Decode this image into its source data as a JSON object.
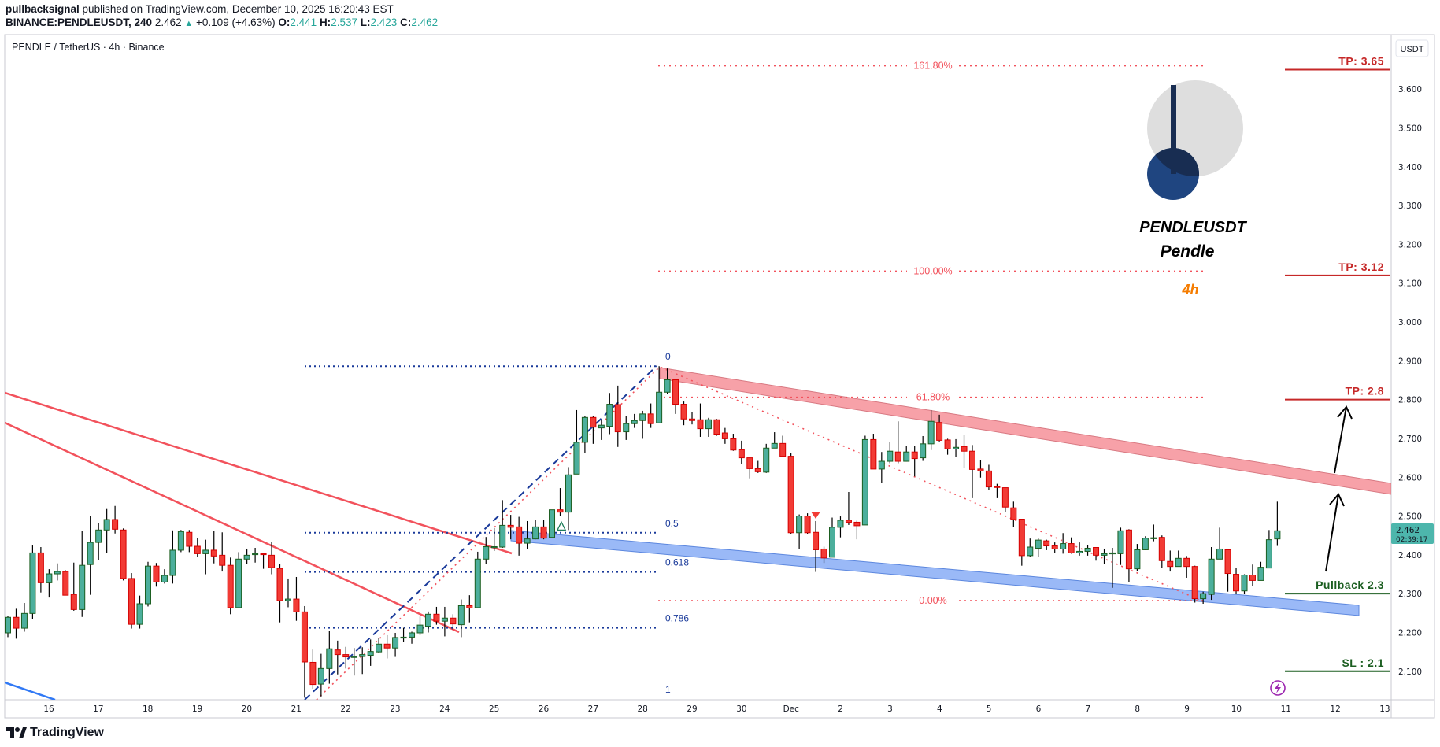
{
  "header": {
    "author": "pullbacksignal",
    "published": "published on TradingView.com, December 10, 2025 16:20:43 EST",
    "symbol": "BINANCE:PENDLEUSDT, 240",
    "last": "2.462",
    "change": "+0.109 (+4.63%)",
    "o_label": "O:",
    "o": "2.441",
    "h_label": "H:",
    "h": "2.537",
    "l_label": "L:",
    "l": "2.423",
    "c_label": "C:",
    "c": "2.462"
  },
  "chart_title": "PENDLE / TetherUS · 4h · Binance",
  "currency_button": "USDT",
  "price_axis": [
    "3.600",
    "3.500",
    "3.400",
    "3.300",
    "3.200",
    "3.100",
    "3.000",
    "2.900",
    "2.800",
    "2.700",
    "2.600",
    "2.500",
    "2.400",
    "2.300",
    "2.200",
    "2.100"
  ],
  "time_axis": [
    "16",
    "17",
    "18",
    "19",
    "20",
    "21",
    "22",
    "23",
    "24",
    "25",
    "26",
    "27",
    "28",
    "29",
    "30",
    "Dec",
    "2",
    "3",
    "4",
    "5",
    "6",
    "7",
    "8",
    "9",
    "10",
    "11",
    "12",
    "13"
  ],
  "price_tag": {
    "price": "2.462",
    "countdown": "02:39:17"
  },
  "fib_retracement": [
    {
      "label": "0",
      "price": 2.886
    },
    {
      "label": "0.5",
      "price": 2.457
    },
    {
      "label": "0.618",
      "price": 2.356
    },
    {
      "label": "0.786",
      "price": 2.212
    },
    {
      "label": "1",
      "price": 2.027
    }
  ],
  "fib_extension": [
    {
      "label": "161.80%",
      "price": 3.66
    },
    {
      "label": "100.00%",
      "price": 3.131
    },
    {
      "label": "61.80%",
      "price": 2.806
    },
    {
      "label": "0.00%",
      "price": 2.282
    }
  ],
  "targets": [
    {
      "label": "TP: 3.65",
      "price": 3.65,
      "color": "#c62828"
    },
    {
      "label": "TP: 3.12",
      "price": 3.12,
      "color": "#c62828"
    },
    {
      "label": "TP: 2.8",
      "price": 2.8,
      "color": "#c62828"
    },
    {
      "label": "Pullback 2.3",
      "price": 2.3,
      "color": "#1b5e20"
    },
    {
      "label": "SL : 2.1",
      "price": 2.1,
      "color": "#1b5e20"
    }
  ],
  "annotation": {
    "ticker": "PENDLEUSDT",
    "name": "Pendle",
    "timeframe": "4h"
  },
  "footer": {
    "brand": "TradingView"
  },
  "colors": {
    "up": "#4caf9c",
    "up_border": "#1b5e20",
    "down": "#f23b35",
    "down_border": "#d50000",
    "accent": "#f57c00"
  },
  "chart_data": {
    "type": "candlestick",
    "interval": "4h",
    "ylim": [
      2.0,
      3.75
    ],
    "candles": [
      [
        2.199,
        2.243,
        2.188,
        2.239
      ],
      [
        2.239,
        2.261,
        2.184,
        2.211
      ],
      [
        2.211,
        2.276,
        2.202,
        2.249
      ],
      [
        2.249,
        2.424,
        2.234,
        2.405
      ],
      [
        2.405,
        2.42,
        2.303,
        2.328
      ],
      [
        2.328,
        2.363,
        2.29,
        2.351
      ],
      [
        2.351,
        2.378,
        2.334,
        2.357
      ],
      [
        2.357,
        2.36,
        2.296,
        2.296
      ],
      [
        2.298,
        2.38,
        2.256,
        2.259
      ],
      [
        2.259,
        2.461,
        2.24,
        2.373
      ],
      [
        2.375,
        2.501,
        2.297,
        2.432
      ],
      [
        2.432,
        2.481,
        2.386,
        2.464
      ],
      [
        2.464,
        2.518,
        2.405,
        2.491
      ],
      [
        2.491,
        2.526,
        2.455,
        2.466
      ],
      [
        2.464,
        2.468,
        2.334,
        2.339
      ],
      [
        2.339,
        2.353,
        2.21,
        2.221
      ],
      [
        2.221,
        2.295,
        2.21,
        2.274
      ],
      [
        2.274,
        2.382,
        2.267,
        2.371
      ],
      [
        2.371,
        2.379,
        2.318,
        2.33
      ],
      [
        2.33,
        2.363,
        2.326,
        2.347
      ],
      [
        2.347,
        2.463,
        2.326,
        2.412
      ],
      [
        2.412,
        2.464,
        2.407,
        2.46
      ],
      [
        2.458,
        2.464,
        2.407,
        2.422
      ],
      [
        2.422,
        2.443,
        2.395,
        2.403
      ],
      [
        2.403,
        2.439,
        2.35,
        2.412
      ],
      [
        2.412,
        2.461,
        2.378,
        2.397
      ],
      [
        2.399,
        2.458,
        2.357,
        2.373
      ],
      [
        2.373,
        2.393,
        2.247,
        2.264
      ],
      [
        2.264,
        2.407,
        2.262,
        2.389
      ],
      [
        2.389,
        2.416,
        2.376,
        2.399
      ],
      [
        2.401,
        2.418,
        2.38,
        2.403
      ],
      [
        2.403,
        2.405,
        2.364,
        2.401
      ],
      [
        2.399,
        2.434,
        2.35,
        2.367
      ],
      [
        2.365,
        2.376,
        2.226,
        2.282
      ],
      [
        2.282,
        2.339,
        2.265,
        2.286
      ],
      [
        2.286,
        2.343,
        2.23,
        2.253
      ],
      [
        2.253,
        2.268,
        2.032,
        2.124
      ],
      [
        2.123,
        2.156,
        2.055,
        2.066
      ],
      [
        2.067,
        2.145,
        2.035,
        2.107
      ],
      [
        2.107,
        2.205,
        2.068,
        2.158
      ],
      [
        2.155,
        2.179,
        2.092,
        2.143
      ],
      [
        2.143,
        2.163,
        2.107,
        2.137
      ],
      [
        2.137,
        2.16,
        2.089,
        2.138
      ],
      [
        2.138,
        2.162,
        2.093,
        2.143
      ],
      [
        2.141,
        2.182,
        2.114,
        2.151
      ],
      [
        2.15,
        2.185,
        2.147,
        2.17
      ],
      [
        2.17,
        2.193,
        2.133,
        2.16
      ],
      [
        2.16,
        2.199,
        2.137,
        2.187
      ],
      [
        2.187,
        2.212,
        2.176,
        2.188
      ],
      [
        2.188,
        2.202,
        2.171,
        2.199
      ],
      [
        2.199,
        2.241,
        2.193,
        2.219
      ],
      [
        2.216,
        2.254,
        2.2,
        2.247
      ],
      [
        2.247,
        2.266,
        2.22,
        2.229
      ],
      [
        2.229,
        2.266,
        2.19,
        2.237
      ],
      [
        2.237,
        2.247,
        2.207,
        2.222
      ],
      [
        2.22,
        2.285,
        2.188,
        2.269
      ],
      [
        2.269,
        2.296,
        2.226,
        2.263
      ],
      [
        2.264,
        2.408,
        2.264,
        2.389
      ],
      [
        2.389,
        2.446,
        2.376,
        2.421
      ],
      [
        2.42,
        2.469,
        2.41,
        2.421
      ],
      [
        2.42,
        2.541,
        2.418,
        2.476
      ],
      [
        2.476,
        2.503,
        2.44,
        2.471
      ],
      [
        2.472,
        2.498,
        2.398,
        2.43
      ],
      [
        2.43,
        2.487,
        2.416,
        2.441
      ],
      [
        2.441,
        2.491,
        2.44,
        2.472
      ],
      [
        2.472,
        2.491,
        2.44,
        2.443
      ],
      [
        2.445,
        2.516,
        2.445,
        2.516
      ],
      [
        2.516,
        2.572,
        2.501,
        2.51
      ],
      [
        2.51,
        2.626,
        2.464,
        2.606
      ],
      [
        2.608,
        2.773,
        2.608,
        2.69
      ],
      [
        2.69,
        2.758,
        2.663,
        2.754
      ],
      [
        2.754,
        2.758,
        2.686,
        2.729
      ],
      [
        2.727,
        2.748,
        2.696,
        2.734
      ],
      [
        2.731,
        2.817,
        2.711,
        2.788
      ],
      [
        2.787,
        2.836,
        2.678,
        2.717
      ],
      [
        2.717,
        2.758,
        2.696,
        2.738
      ],
      [
        2.738,
        2.763,
        2.727,
        2.746
      ],
      [
        2.746,
        2.771,
        2.699,
        2.763
      ],
      [
        2.763,
        2.79,
        2.727,
        2.738
      ],
      [
        2.74,
        2.886,
        2.74,
        2.819
      ],
      [
        2.819,
        2.88,
        2.815,
        2.851
      ],
      [
        2.851,
        2.851,
        2.763,
        2.788
      ],
      [
        2.788,
        2.795,
        2.734,
        2.75
      ],
      [
        2.75,
        2.767,
        2.736,
        2.746
      ],
      [
        2.748,
        2.79,
        2.704,
        2.725
      ],
      [
        2.725,
        2.753,
        2.704,
        2.748
      ],
      [
        2.748,
        2.75,
        2.707,
        2.711
      ],
      [
        2.714,
        2.727,
        2.686,
        2.699
      ],
      [
        2.699,
        2.712,
        2.668,
        2.67
      ],
      [
        2.671,
        2.694,
        2.635,
        2.65
      ],
      [
        2.65,
        2.65,
        2.597,
        2.622
      ],
      [
        2.622,
        2.642,
        2.611,
        2.614
      ],
      [
        2.613,
        2.686,
        2.611,
        2.675
      ],
      [
        2.675,
        2.716,
        2.675,
        2.687
      ],
      [
        2.687,
        2.707,
        2.654,
        2.654
      ],
      [
        2.654,
        2.663,
        2.453,
        2.457
      ],
      [
        2.457,
        2.504,
        2.416,
        2.5
      ],
      [
        2.5,
        2.507,
        2.453,
        2.457
      ],
      [
        2.458,
        2.487,
        2.356,
        2.413
      ],
      [
        2.415,
        2.421,
        2.379,
        2.392
      ],
      [
        2.394,
        2.496,
        2.394,
        2.471
      ],
      [
        2.471,
        2.499,
        2.445,
        2.489
      ],
      [
        2.489,
        2.562,
        2.477,
        2.484
      ],
      [
        2.484,
        2.488,
        2.44,
        2.475
      ],
      [
        2.477,
        2.707,
        2.477,
        2.697
      ],
      [
        2.697,
        2.712,
        2.621,
        2.621
      ],
      [
        2.621,
        2.665,
        2.585,
        2.641
      ],
      [
        2.641,
        2.69,
        2.636,
        2.667
      ],
      [
        2.665,
        2.744,
        2.636,
        2.641
      ],
      [
        2.641,
        2.681,
        2.64,
        2.665
      ],
      [
        2.665,
        2.681,
        2.602,
        2.648
      ],
      [
        2.65,
        2.706,
        2.642,
        2.686
      ],
      [
        2.686,
        2.773,
        2.67,
        2.744
      ],
      [
        2.741,
        2.761,
        2.692,
        2.695
      ],
      [
        2.696,
        2.699,
        2.658,
        2.673
      ],
      [
        2.673,
        2.698,
        2.652,
        2.677
      ],
      [
        2.679,
        2.71,
        2.623,
        2.667
      ],
      [
        2.667,
        2.683,
        2.546,
        2.62
      ],
      [
        2.621,
        2.645,
        2.599,
        2.616
      ],
      [
        2.616,
        2.632,
        2.567,
        2.575
      ],
      [
        2.576,
        2.583,
        2.546,
        2.574
      ],
      [
        2.573,
        2.573,
        2.51,
        2.523
      ],
      [
        2.521,
        2.537,
        2.471,
        2.491
      ],
      [
        2.492,
        2.492,
        2.372,
        2.398
      ],
      [
        2.398,
        2.442,
        2.394,
        2.42
      ],
      [
        2.417,
        2.442,
        2.394,
        2.438
      ],
      [
        2.436,
        2.439,
        2.412,
        2.423
      ],
      [
        2.423,
        2.432,
        2.405,
        2.415
      ],
      [
        2.415,
        2.456,
        2.403,
        2.429
      ],
      [
        2.429,
        2.445,
        2.403,
        2.405
      ],
      [
        2.405,
        2.432,
        2.398,
        2.409
      ],
      [
        2.409,
        2.425,
        2.398,
        2.417
      ],
      [
        2.419,
        2.419,
        2.385,
        2.399
      ],
      [
        2.399,
        2.416,
        2.376,
        2.403
      ],
      [
        2.404,
        2.418,
        2.315,
        2.405
      ],
      [
        2.403,
        2.47,
        2.374,
        2.462
      ],
      [
        2.464,
        2.466,
        2.33,
        2.364
      ],
      [
        2.364,
        2.428,
        2.358,
        2.413
      ],
      [
        2.413,
        2.448,
        2.412,
        2.443
      ],
      [
        2.443,
        2.478,
        2.435,
        2.444
      ],
      [
        2.445,
        2.45,
        2.366,
        2.385
      ],
      [
        2.383,
        2.411,
        2.357,
        2.37
      ],
      [
        2.37,
        2.411,
        2.37,
        2.391
      ],
      [
        2.391,
        2.397,
        2.341,
        2.37
      ],
      [
        2.37,
        2.372,
        2.277,
        2.287
      ],
      [
        2.287,
        2.305,
        2.274,
        2.3
      ],
      [
        2.298,
        2.42,
        2.284,
        2.389
      ],
      [
        2.389,
        2.47,
        2.389,
        2.415
      ],
      [
        2.413,
        2.413,
        2.305,
        2.352
      ],
      [
        2.35,
        2.367,
        2.299,
        2.307
      ],
      [
        2.307,
        2.35,
        2.299,
        2.348
      ],
      [
        2.348,
        2.375,
        2.32,
        2.334
      ],
      [
        2.334,
        2.382,
        2.334,
        2.368
      ],
      [
        2.366,
        2.464,
        2.366,
        2.439
      ],
      [
        2.441,
        2.537,
        2.423,
        2.462
      ]
    ]
  }
}
